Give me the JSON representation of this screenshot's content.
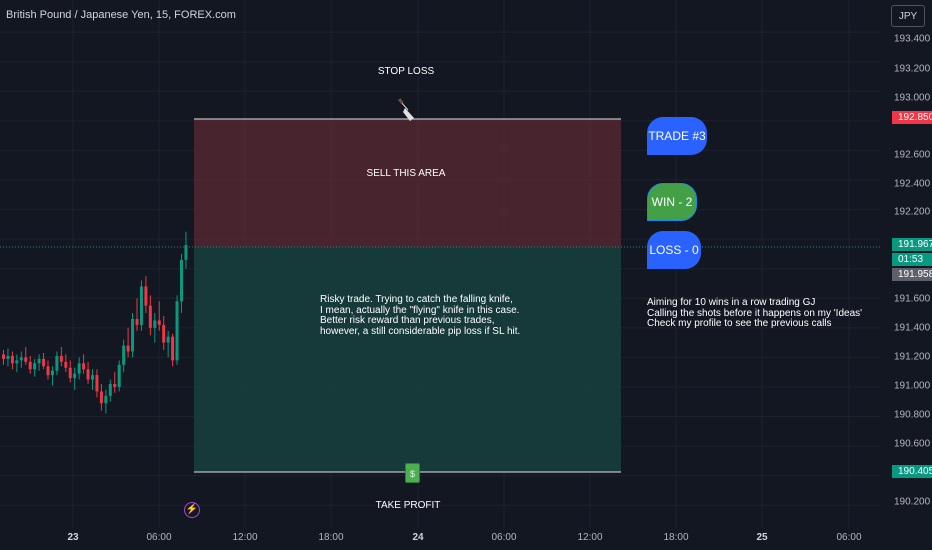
{
  "header": {
    "symbol_title": "British Pound / Japanese Yen, 15, FOREX.com"
  },
  "price_scale": {
    "currency": "JPY",
    "ticks": [
      "193.400",
      "193.200",
      "193.000",
      "192.600",
      "192.400",
      "192.200",
      "191.600",
      "191.400",
      "191.200",
      "191.000",
      "190.800",
      "190.600",
      "190.200"
    ],
    "stop_loss_tag": "192.850",
    "current_price_tag": "191.967",
    "countdown_tag": "01:53",
    "last_close_tag": "191.958",
    "take_profit_tag": "190.405"
  },
  "time_axis": {
    "labels": [
      "23",
      "06:00",
      "12:00",
      "18:00",
      "24",
      "06:00",
      "12:00",
      "18:00",
      "25",
      "06:00"
    ]
  },
  "annotations": {
    "stop_loss_label": "STOP LOSS",
    "sell_area_label": "SELL THIS AREA",
    "take_profit_label": "TAKE PROFIT",
    "note_lines": [
      "Risky trade. Trying to catch the falling knife,",
      "I mean, actually the \"flying\" knife in this case.",
      "Better risk reward than previous trades,",
      "however, a still considerable pip loss if SL hit."
    ],
    "side_note_lines": [
      "Aiming for 10 wins in a row trading GJ",
      "Calling the shots before it happens on my 'Ideas'",
      "Check my profile to see the previous calls"
    ],
    "trade_bubble": "TRADE #3",
    "win_bubble": "WIN - 2",
    "loss_bubble": "LOSS - 0",
    "money_emoji_text": "$"
  },
  "chart_data": {
    "type": "candlestick",
    "title": "British Pound / Japanese Yen, 15, FOREX.com",
    "ylim": [
      190.1,
      193.55
    ],
    "stop_loss": 192.85,
    "entry": 191.967,
    "take_profit": 190.405,
    "colors": {
      "up": "#089981",
      "down": "#f23645",
      "risk_zone": "#5b2a33",
      "reward_zone": "#173f3d"
    },
    "candles": [
      [
        191.22,
        191.25,
        191.15,
        191.19
      ],
      [
        191.19,
        191.26,
        191.14,
        191.21
      ],
      [
        191.21,
        191.24,
        191.12,
        191.16
      ],
      [
        191.16,
        191.22,
        191.1,
        191.18
      ],
      [
        191.18,
        191.24,
        191.13,
        191.2
      ],
      [
        191.2,
        191.27,
        191.15,
        191.17
      ],
      [
        191.17,
        191.21,
        191.09,
        191.12
      ],
      [
        191.12,
        191.19,
        191.07,
        191.16
      ],
      [
        191.16,
        191.22,
        191.11,
        191.19
      ],
      [
        191.19,
        191.23,
        191.12,
        191.14
      ],
      [
        191.14,
        191.18,
        191.05,
        191.08
      ],
      [
        191.08,
        191.14,
        191.01,
        191.11
      ],
      [
        191.11,
        191.24,
        191.08,
        191.21
      ],
      [
        191.21,
        191.27,
        191.14,
        191.17
      ],
      [
        191.17,
        191.22,
        191.1,
        191.13
      ],
      [
        191.13,
        191.18,
        191.03,
        191.06
      ],
      [
        191.06,
        191.13,
        190.98,
        191.09
      ],
      [
        191.09,
        191.2,
        191.05,
        191.16
      ],
      [
        191.16,
        191.22,
        191.09,
        191.12
      ],
      [
        191.12,
        191.17,
        191.02,
        191.05
      ],
      [
        191.05,
        191.12,
        190.98,
        191.08
      ],
      [
        191.08,
        191.12,
        190.93,
        190.97
      ],
      [
        190.97,
        191.02,
        190.84,
        190.89
      ],
      [
        190.89,
        190.98,
        190.82,
        190.94
      ],
      [
        190.94,
        191.05,
        190.9,
        191.02
      ],
      [
        191.02,
        191.1,
        190.96,
        191.0
      ],
      [
        191.0,
        191.18,
        190.97,
        191.15
      ],
      [
        191.15,
        191.32,
        191.1,
        191.28
      ],
      [
        191.28,
        191.4,
        191.2,
        191.24
      ],
      [
        191.24,
        191.5,
        191.2,
        191.46
      ],
      [
        191.46,
        191.6,
        191.38,
        191.42
      ],
      [
        191.42,
        191.72,
        191.38,
        191.68
      ],
      [
        191.68,
        191.75,
        191.5,
        191.55
      ],
      [
        191.55,
        191.62,
        191.35,
        191.4
      ],
      [
        191.4,
        191.5,
        191.3,
        191.45
      ],
      [
        191.45,
        191.58,
        191.38,
        191.42
      ],
      [
        191.42,
        191.48,
        191.25,
        191.3
      ],
      [
        191.3,
        191.38,
        191.2,
        191.34
      ],
      [
        191.34,
        191.36,
        191.14,
        191.18
      ],
      [
        191.18,
        191.62,
        191.15,
        191.58
      ],
      [
        191.58,
        191.9,
        191.5,
        191.86
      ],
      [
        191.86,
        192.05,
        191.8,
        191.96
      ]
    ]
  }
}
